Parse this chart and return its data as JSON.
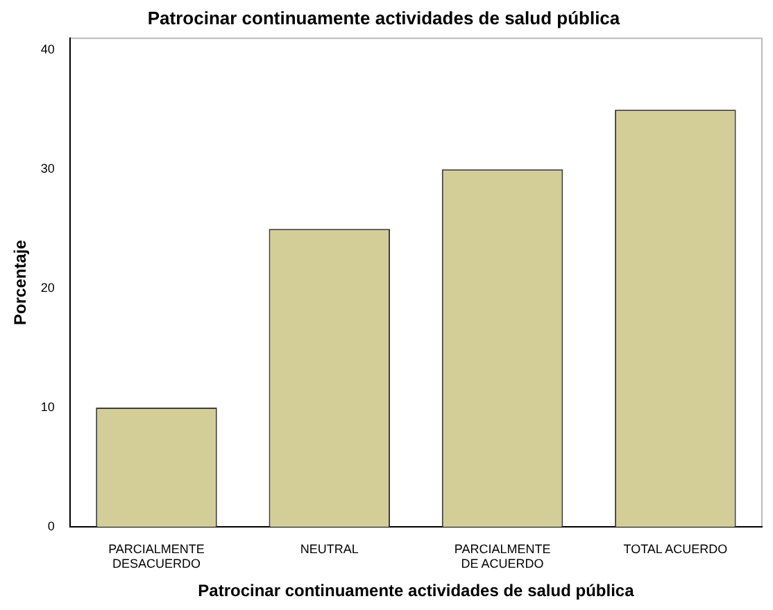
{
  "chart_data": {
    "type": "bar",
    "title": "Patrocinar continuamente actividades de salud pública",
    "xlabel": "Patrocinar continuamente actividades de salud pública",
    "ylabel": "Porcentaje",
    "categories": [
      "PARCIALMENTE DESACUERDO",
      "NEUTRAL",
      "PARCIALMENTE DE ACUERDO",
      "TOTAL ACUERDO"
    ],
    "values": [
      10,
      25,
      30,
      35
    ],
    "color": "#d3ce97",
    "ylim": [
      0,
      41
    ],
    "yticks": [
      0,
      10,
      20,
      30,
      40
    ],
    "grid": false,
    "legend": false
  }
}
